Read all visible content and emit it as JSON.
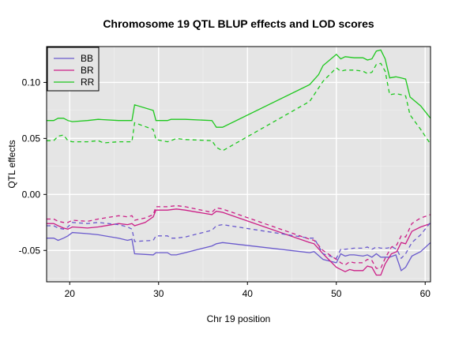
{
  "chart_data": {
    "type": "line",
    "title": "Chromosome 19 QTL BLUP effects and LOD scores",
    "xlabel": "Chr 19 position",
    "ylabel": "QTL effects",
    "xlim": [
      17.4,
      60.6
    ],
    "ylim": [
      -0.078,
      0.132
    ],
    "xticks": [
      20,
      30,
      40,
      50,
      60
    ],
    "yticks": [
      0.1,
      0.05,
      0.0,
      -0.05
    ],
    "ytick_labels": [
      "0.10",
      "0.05",
      "0.00",
      "-0.05"
    ],
    "grid": true,
    "legend_position": "top-left",
    "series": [
      {
        "name": "BB",
        "color": "#6a5acd",
        "style": "solid",
        "points": [
          [
            17.4,
            -0.039
          ],
          [
            18.2,
            -0.039
          ],
          [
            18.7,
            -0.041
          ],
          [
            19.3,
            -0.039
          ],
          [
            19.8,
            -0.037
          ],
          [
            20.3,
            -0.034
          ],
          [
            22,
            -0.035
          ],
          [
            23.2,
            -0.036
          ],
          [
            25.5,
            -0.039
          ],
          [
            26.5,
            -0.041
          ],
          [
            27,
            -0.04
          ],
          [
            27.3,
            -0.053
          ],
          [
            29.4,
            -0.054
          ],
          [
            29.7,
            -0.052
          ],
          [
            31,
            -0.052
          ],
          [
            31.4,
            -0.054
          ],
          [
            32,
            -0.054
          ],
          [
            33,
            -0.052
          ],
          [
            36,
            -0.046
          ],
          [
            36.5,
            -0.044
          ],
          [
            37.2,
            -0.043
          ],
          [
            47,
            -0.052
          ],
          [
            47.5,
            -0.051
          ],
          [
            48.5,
            -0.058
          ],
          [
            50,
            -0.061
          ],
          [
            50.5,
            -0.053
          ],
          [
            51,
            -0.055
          ],
          [
            51.5,
            -0.054
          ],
          [
            52,
            -0.054
          ],
          [
            53,
            -0.055
          ],
          [
            53.5,
            -0.054
          ],
          [
            54,
            -0.056
          ],
          [
            54.5,
            -0.053
          ],
          [
            55,
            -0.056
          ],
          [
            56,
            -0.056
          ],
          [
            56.7,
            -0.054
          ],
          [
            57.3,
            -0.068
          ],
          [
            57.8,
            -0.065
          ],
          [
            58.5,
            -0.055
          ],
          [
            59.5,
            -0.051
          ],
          [
            60.6,
            -0.043
          ]
        ]
      },
      {
        "name": "BR",
        "color": "#cc1f87",
        "style": "solid",
        "points": [
          [
            17.4,
            -0.026
          ],
          [
            18.2,
            -0.026
          ],
          [
            18.7,
            -0.028
          ],
          [
            19.3,
            -0.03
          ],
          [
            19.8,
            -0.031
          ],
          [
            20.3,
            -0.029
          ],
          [
            22,
            -0.03
          ],
          [
            23.2,
            -0.029
          ],
          [
            25.5,
            -0.026
          ],
          [
            26.5,
            -0.027
          ],
          [
            27,
            -0.026
          ],
          [
            27.3,
            -0.028
          ],
          [
            28.5,
            -0.025
          ],
          [
            29.4,
            -0.02
          ],
          [
            29.7,
            -0.014
          ],
          [
            31,
            -0.014
          ],
          [
            32,
            -0.013
          ],
          [
            33,
            -0.014
          ],
          [
            36,
            -0.018
          ],
          [
            36.5,
            -0.015
          ],
          [
            37.2,
            -0.016
          ],
          [
            47,
            -0.043
          ],
          [
            47.5,
            -0.044
          ],
          [
            48.5,
            -0.053
          ],
          [
            50,
            -0.065
          ],
          [
            50.5,
            -0.067
          ],
          [
            51,
            -0.069
          ],
          [
            51.5,
            -0.067
          ],
          [
            52,
            -0.068
          ],
          [
            53,
            -0.068
          ],
          [
            53.5,
            -0.064
          ],
          [
            54,
            -0.065
          ],
          [
            54.5,
            -0.072
          ],
          [
            55,
            -0.072
          ],
          [
            55.5,
            -0.062
          ],
          [
            56.2,
            -0.053
          ],
          [
            56.8,
            -0.051
          ],
          [
            57.3,
            -0.043
          ],
          [
            57.8,
            -0.044
          ],
          [
            58.5,
            -0.033
          ],
          [
            59.5,
            -0.029
          ],
          [
            60.6,
            -0.026
          ]
        ]
      },
      {
        "name": "RR",
        "color": "#1ec81e",
        "style": "solid",
        "points": [
          [
            17.4,
            0.066
          ],
          [
            18.2,
            0.066
          ],
          [
            18.7,
            0.068
          ],
          [
            19.3,
            0.068
          ],
          [
            19.8,
            0.066
          ],
          [
            20.3,
            0.065
          ],
          [
            22,
            0.066
          ],
          [
            23.2,
            0.067
          ],
          [
            25.5,
            0.066
          ],
          [
            26.5,
            0.066
          ],
          [
            27,
            0.066
          ],
          [
            27.3,
            0.08
          ],
          [
            29.4,
            0.075
          ],
          [
            29.7,
            0.066
          ],
          [
            31,
            0.066
          ],
          [
            31.4,
            0.067
          ],
          [
            33,
            0.067
          ],
          [
            36,
            0.066
          ],
          [
            36.5,
            0.06
          ],
          [
            37.2,
            0.06
          ],
          [
            47,
            0.098
          ],
          [
            48,
            0.107
          ],
          [
            48.5,
            0.115
          ],
          [
            50,
            0.125
          ],
          [
            50.5,
            0.121
          ],
          [
            51,
            0.123
          ],
          [
            52,
            0.122
          ],
          [
            53,
            0.122
          ],
          [
            53.5,
            0.12
          ],
          [
            54,
            0.121
          ],
          [
            54.5,
            0.128
          ],
          [
            55,
            0.129
          ],
          [
            55.5,
            0.121
          ],
          [
            56,
            0.104
          ],
          [
            56.7,
            0.105
          ],
          [
            57.3,
            0.104
          ],
          [
            57.8,
            0.103
          ],
          [
            58.3,
            0.087
          ],
          [
            59.5,
            0.079
          ],
          [
            60.6,
            0.068
          ]
        ]
      },
      {
        "name": "",
        "color": "#6a5acd",
        "style": "dashed",
        "points": [
          [
            17.4,
            -0.028
          ],
          [
            18.2,
            -0.028
          ],
          [
            18.7,
            -0.03
          ],
          [
            19.3,
            -0.031
          ],
          [
            19.8,
            -0.029
          ],
          [
            20.3,
            -0.025
          ],
          [
            22,
            -0.026
          ],
          [
            23.2,
            -0.025
          ],
          [
            25.5,
            -0.027
          ],
          [
            26.5,
            -0.029
          ],
          [
            27,
            -0.031
          ],
          [
            27.3,
            -0.042
          ],
          [
            29.4,
            -0.041
          ],
          [
            29.7,
            -0.037
          ],
          [
            31,
            -0.037
          ],
          [
            31.4,
            -0.039
          ],
          [
            32,
            -0.039
          ],
          [
            33,
            -0.038
          ],
          [
            36,
            -0.032
          ],
          [
            36.5,
            -0.028
          ],
          [
            37.2,
            -0.027
          ],
          [
            47,
            -0.039
          ],
          [
            47.5,
            -0.039
          ],
          [
            48.5,
            -0.053
          ],
          [
            50,
            -0.057
          ],
          [
            50.5,
            -0.049
          ],
          [
            51,
            -0.049
          ],
          [
            52,
            -0.048
          ],
          [
            53,
            -0.048
          ],
          [
            53.5,
            -0.047
          ],
          [
            54,
            -0.049
          ],
          [
            54.5,
            -0.047
          ],
          [
            55,
            -0.048
          ],
          [
            55.7,
            -0.048
          ],
          [
            56.3,
            -0.047
          ],
          [
            56.8,
            -0.049
          ],
          [
            57.3,
            -0.057
          ],
          [
            57.8,
            -0.053
          ],
          [
            58.5,
            -0.043
          ],
          [
            59.5,
            -0.036
          ],
          [
            60.6,
            -0.025
          ]
        ]
      },
      {
        "name": "",
        "color": "#cc1f87",
        "style": "dashed",
        "points": [
          [
            17.4,
            -0.022
          ],
          [
            18.2,
            -0.022
          ],
          [
            18.7,
            -0.024
          ],
          [
            19.3,
            -0.025
          ],
          [
            19.8,
            -0.025
          ],
          [
            20.3,
            -0.023
          ],
          [
            22,
            -0.024
          ],
          [
            23.2,
            -0.022
          ],
          [
            25.5,
            -0.019
          ],
          [
            26.5,
            -0.02
          ],
          [
            27,
            -0.019
          ],
          [
            27.3,
            -0.023
          ],
          [
            28.5,
            -0.021
          ],
          [
            29.4,
            -0.018
          ],
          [
            29.7,
            -0.011
          ],
          [
            31,
            -0.011
          ],
          [
            32,
            -0.01
          ],
          [
            33,
            -0.011
          ],
          [
            36,
            -0.016
          ],
          [
            36.5,
            -0.012
          ],
          [
            37.2,
            -0.013
          ],
          [
            47,
            -0.04
          ],
          [
            47.5,
            -0.041
          ],
          [
            48.5,
            -0.05
          ],
          [
            50,
            -0.058
          ],
          [
            50.5,
            -0.061
          ],
          [
            51,
            -0.063
          ],
          [
            51.5,
            -0.06
          ],
          [
            52,
            -0.061
          ],
          [
            53,
            -0.061
          ],
          [
            53.5,
            -0.058
          ],
          [
            54,
            -0.059
          ],
          [
            54.5,
            -0.066
          ],
          [
            55,
            -0.066
          ],
          [
            55.5,
            -0.057
          ],
          [
            56.2,
            -0.047
          ],
          [
            56.8,
            -0.045
          ],
          [
            57.3,
            -0.037
          ],
          [
            57.8,
            -0.038
          ],
          [
            58.5,
            -0.026
          ],
          [
            59.5,
            -0.021
          ],
          [
            60.6,
            -0.018
          ]
        ]
      },
      {
        "name": "",
        "color": "#1ec81e",
        "style": "dashed",
        "points": [
          [
            17.4,
            0.048
          ],
          [
            18.2,
            0.048
          ],
          [
            18.7,
            0.052
          ],
          [
            19.3,
            0.053
          ],
          [
            19.8,
            0.048
          ],
          [
            20.3,
            0.047
          ],
          [
            22,
            0.047
          ],
          [
            23.2,
            0.048
          ],
          [
            23.8,
            0.046
          ],
          [
            25.5,
            0.047
          ],
          [
            26.5,
            0.047
          ],
          [
            27,
            0.047
          ],
          [
            27.3,
            0.064
          ],
          [
            29.4,
            0.058
          ],
          [
            29.7,
            0.049
          ],
          [
            31,
            0.047
          ],
          [
            31.4,
            0.048
          ],
          [
            32,
            0.05
          ],
          [
            33,
            0.049
          ],
          [
            36,
            0.048
          ],
          [
            36.5,
            0.042
          ],
          [
            37.2,
            0.039
          ],
          [
            47,
            0.083
          ],
          [
            48,
            0.095
          ],
          [
            48.5,
            0.101
          ],
          [
            50,
            0.113
          ],
          [
            50.5,
            0.11
          ],
          [
            51,
            0.111
          ],
          [
            52,
            0.111
          ],
          [
            53,
            0.11
          ],
          [
            53.5,
            0.108
          ],
          [
            54,
            0.109
          ],
          [
            54.5,
            0.116
          ],
          [
            55,
            0.117
          ],
          [
            55.5,
            0.11
          ],
          [
            56,
            0.089
          ],
          [
            56.7,
            0.09
          ],
          [
            57.3,
            0.089
          ],
          [
            57.8,
            0.088
          ],
          [
            58.3,
            0.071
          ],
          [
            59.5,
            0.058
          ],
          [
            60.6,
            0.045
          ]
        ]
      }
    ]
  }
}
